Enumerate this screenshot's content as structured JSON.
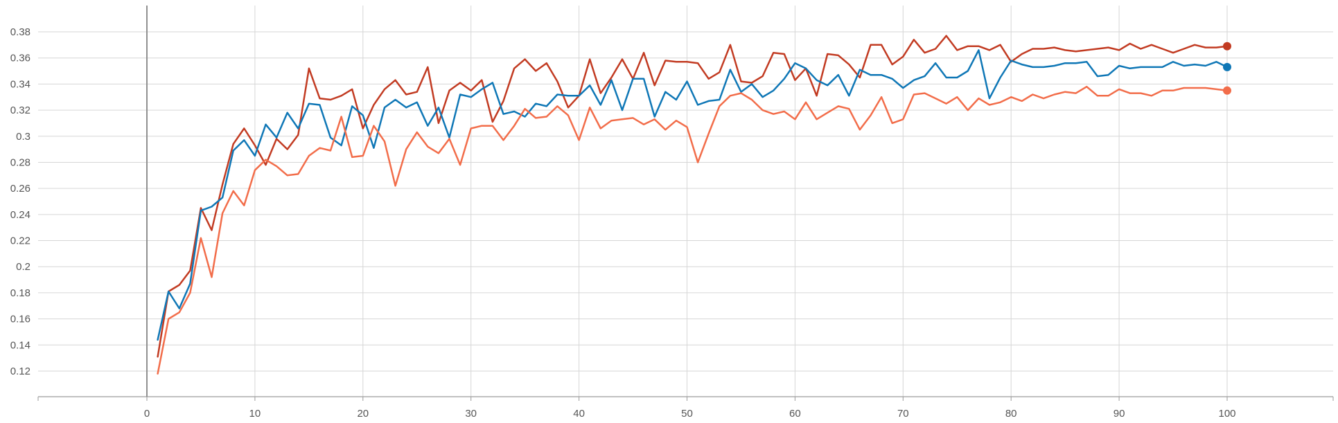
{
  "chart_data": {
    "type": "line",
    "title": "",
    "xlabel": "",
    "ylabel": "",
    "xlim": [
      -10,
      110
    ],
    "ylim": [
      0.1,
      0.39
    ],
    "x_ticks": [
      0,
      10,
      20,
      30,
      40,
      50,
      60,
      70,
      80,
      90,
      100
    ],
    "x_tick_labels": [
      "0",
      "10",
      "20",
      "30",
      "40",
      "50",
      "60",
      "70",
      "80",
      "90",
      "100"
    ],
    "y_ticks": [
      0.12,
      0.14,
      0.16,
      0.18,
      0.2,
      0.22,
      0.24,
      0.26,
      0.28,
      0.3,
      0.32,
      0.34,
      0.36,
      0.38
    ],
    "y_tick_labels": [
      "0.12",
      "0.14",
      "0.16",
      "0.18",
      "0.2",
      "0.22",
      "0.24",
      "0.26",
      "0.28",
      "0.3",
      "0.32",
      "0.34",
      "0.36",
      "0.38"
    ],
    "grid": true,
    "legend": "none",
    "x": [
      1,
      2,
      3,
      4,
      5,
      6,
      7,
      8,
      9,
      10,
      11,
      12,
      13,
      14,
      15,
      16,
      17,
      18,
      19,
      20,
      21,
      22,
      23,
      24,
      25,
      26,
      27,
      28,
      29,
      30,
      31,
      32,
      33,
      34,
      35,
      36,
      37,
      38,
      39,
      40,
      41,
      42,
      43,
      44,
      45,
      46,
      47,
      48,
      49,
      50,
      51,
      52,
      53,
      54,
      55,
      56,
      57,
      58,
      59,
      60,
      61,
      62,
      63,
      64,
      65,
      66,
      67,
      68,
      69,
      70,
      71,
      72,
      73,
      74,
      75,
      76,
      77,
      78,
      79,
      80,
      81,
      82,
      83,
      84,
      85,
      86,
      87,
      88,
      89,
      90,
      91,
      92,
      93,
      94,
      95,
      96,
      97,
      98,
      99,
      100
    ],
    "series": [
      {
        "color": "#c23b22",
        "values": [
          0.131,
          0.181,
          0.186,
          0.197,
          0.245,
          0.228,
          0.263,
          0.294,
          0.306,
          0.293,
          0.278,
          0.298,
          0.29,
          0.301,
          0.352,
          0.329,
          0.328,
          0.331,
          0.336,
          0.306,
          0.324,
          0.336,
          0.343,
          0.332,
          0.334,
          0.353,
          0.31,
          0.335,
          0.341,
          0.335,
          0.343,
          0.311,
          0.327,
          0.352,
          0.359,
          0.35,
          0.356,
          0.342,
          0.322,
          0.331,
          0.359,
          0.333,
          0.345,
          0.359,
          0.344,
          0.364,
          0.339,
          0.358,
          0.357,
          0.357,
          0.356,
          0.344,
          0.349,
          0.37,
          0.342,
          0.341,
          0.346,
          0.364,
          0.363,
          0.343,
          0.352,
          0.331,
          0.363,
          0.362,
          0.355,
          0.345,
          0.37,
          0.37,
          0.355,
          0.361,
          0.374,
          0.364,
          0.367,
          0.377,
          0.366,
          0.369,
          0.369,
          0.366,
          0.37,
          0.357,
          0.363,
          0.367,
          0.367,
          0.368,
          0.366,
          0.365,
          0.366,
          0.367,
          0.368,
          0.366,
          0.371,
          0.367,
          0.37,
          0.367,
          0.364,
          0.367,
          0.37,
          0.368,
          0.368,
          0.369
        ]
      },
      {
        "color": "#0f77b6",
        "values": [
          0.144,
          0.181,
          0.168,
          0.187,
          0.243,
          0.246,
          0.253,
          0.289,
          0.297,
          0.285,
          0.309,
          0.299,
          0.318,
          0.306,
          0.325,
          0.324,
          0.299,
          0.293,
          0.323,
          0.316,
          0.291,
          0.322,
          0.328,
          0.322,
          0.326,
          0.308,
          0.322,
          0.299,
          0.332,
          0.33,
          0.336,
          0.341,
          0.317,
          0.319,
          0.315,
          0.325,
          0.323,
          0.332,
          0.331,
          0.331,
          0.339,
          0.324,
          0.343,
          0.32,
          0.344,
          0.344,
          0.315,
          0.334,
          0.328,
          0.342,
          0.324,
          0.327,
          0.328,
          0.351,
          0.334,
          0.34,
          0.33,
          0.335,
          0.344,
          0.356,
          0.352,
          0.343,
          0.339,
          0.347,
          0.331,
          0.351,
          0.347,
          0.347,
          0.344,
          0.337,
          0.343,
          0.346,
          0.356,
          0.345,
          0.345,
          0.35,
          0.366,
          0.329,
          0.345,
          0.358,
          0.355,
          0.353,
          0.353,
          0.354,
          0.356,
          0.356,
          0.357,
          0.346,
          0.347,
          0.354,
          0.352,
          0.353,
          0.353,
          0.353,
          0.357,
          0.354,
          0.355,
          0.354,
          0.357,
          0.353
        ]
      },
      {
        "color": "#f26d4a",
        "values": [
          0.118,
          0.16,
          0.165,
          0.18,
          0.222,
          0.192,
          0.241,
          0.258,
          0.247,
          0.274,
          0.282,
          0.277,
          0.27,
          0.271,
          0.285,
          0.291,
          0.289,
          0.315,
          0.284,
          0.285,
          0.308,
          0.296,
          0.262,
          0.29,
          0.303,
          0.292,
          0.287,
          0.298,
          0.278,
          0.306,
          0.308,
          0.308,
          0.297,
          0.308,
          0.321,
          0.314,
          0.315,
          0.323,
          0.316,
          0.297,
          0.322,
          0.306,
          0.312,
          0.313,
          0.314,
          0.309,
          0.313,
          0.305,
          0.312,
          0.307,
          0.28,
          0.302,
          0.323,
          0.331,
          0.333,
          0.328,
          0.32,
          0.317,
          0.319,
          0.313,
          0.326,
          0.313,
          0.318,
          0.323,
          0.321,
          0.305,
          0.316,
          0.33,
          0.31,
          0.313,
          0.332,
          0.333,
          0.329,
          0.325,
          0.33,
          0.32,
          0.329,
          0.324,
          0.326,
          0.33,
          0.327,
          0.332,
          0.329,
          0.332,
          0.334,
          0.333,
          0.338,
          0.331,
          0.331,
          0.336,
          0.333,
          0.333,
          0.331,
          0.335,
          0.335,
          0.337,
          0.337,
          0.337,
          0.336,
          0.335
        ]
      }
    ]
  }
}
